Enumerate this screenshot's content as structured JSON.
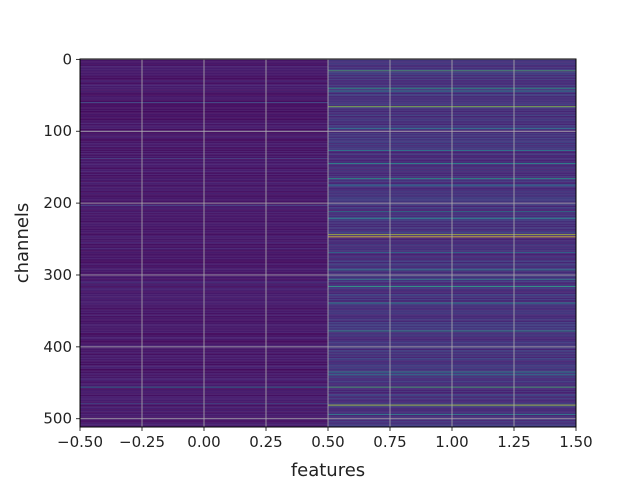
{
  "chart_data": {
    "type": "heatmap",
    "colormap": "viridis",
    "xlabel": "features",
    "ylabel": "channels",
    "xlim": [
      -0.5,
      1.5
    ],
    "ylim": [
      511.5,
      -0.5
    ],
    "x_ticks": [
      -0.5,
      -0.25,
      0.0,
      0.25,
      0.5,
      0.75,
      1.0,
      1.25,
      1.5
    ],
    "x_tick_labels": [
      "−0.50",
      "−0.25",
      "0.00",
      "0.25",
      "0.50",
      "0.75",
      "1.00",
      "1.25",
      "1.50"
    ],
    "y_ticks": [
      0,
      100,
      200,
      300,
      400,
      500
    ],
    "y_tick_labels": [
      "0",
      "100",
      "200",
      "300",
      "400",
      "500"
    ],
    "grid": true,
    "columns": [
      0,
      1
    ],
    "channel_count": 512,
    "column_0_baseline": 0.08,
    "column_1_baseline": 0.16,
    "column_0_highlights": [
      {
        "channel": 60,
        "value": 0.25
      },
      {
        "channel": 138,
        "value": 0.2
      },
      {
        "channel": 203,
        "value": 0.22
      },
      {
        "channel": 311,
        "value": 0.2
      },
      {
        "channel": 456,
        "value": 0.4
      },
      {
        "channel": 479,
        "value": 0.22
      }
    ],
    "column_1_highlights": [
      {
        "channel": 16,
        "value": 0.7
      },
      {
        "channel": 40,
        "value": 0.6
      },
      {
        "channel": 44,
        "value": 0.5
      },
      {
        "channel": 66,
        "value": 0.85
      },
      {
        "channel": 96,
        "value": 0.4
      },
      {
        "channel": 127,
        "value": 0.45
      },
      {
        "channel": 145,
        "value": 0.5
      },
      {
        "channel": 166,
        "value": 0.55
      },
      {
        "channel": 175,
        "value": 0.4
      },
      {
        "channel": 212,
        "value": 0.45
      },
      {
        "channel": 221,
        "value": 0.5
      },
      {
        "channel": 244,
        "value": 0.9
      },
      {
        "channel": 247,
        "value": 1.0
      },
      {
        "channel": 269,
        "value": 0.4
      },
      {
        "channel": 293,
        "value": 0.5
      },
      {
        "channel": 306,
        "value": 0.45
      },
      {
        "channel": 316,
        "value": 0.6
      },
      {
        "channel": 339,
        "value": 0.5
      },
      {
        "channel": 378,
        "value": 0.55
      },
      {
        "channel": 400,
        "value": 0.45
      },
      {
        "channel": 435,
        "value": 0.5
      },
      {
        "channel": 439,
        "value": 0.45
      },
      {
        "channel": 456,
        "value": 0.7
      },
      {
        "channel": 481,
        "value": 0.9
      },
      {
        "channel": 494,
        "value": 0.45
      }
    ]
  }
}
